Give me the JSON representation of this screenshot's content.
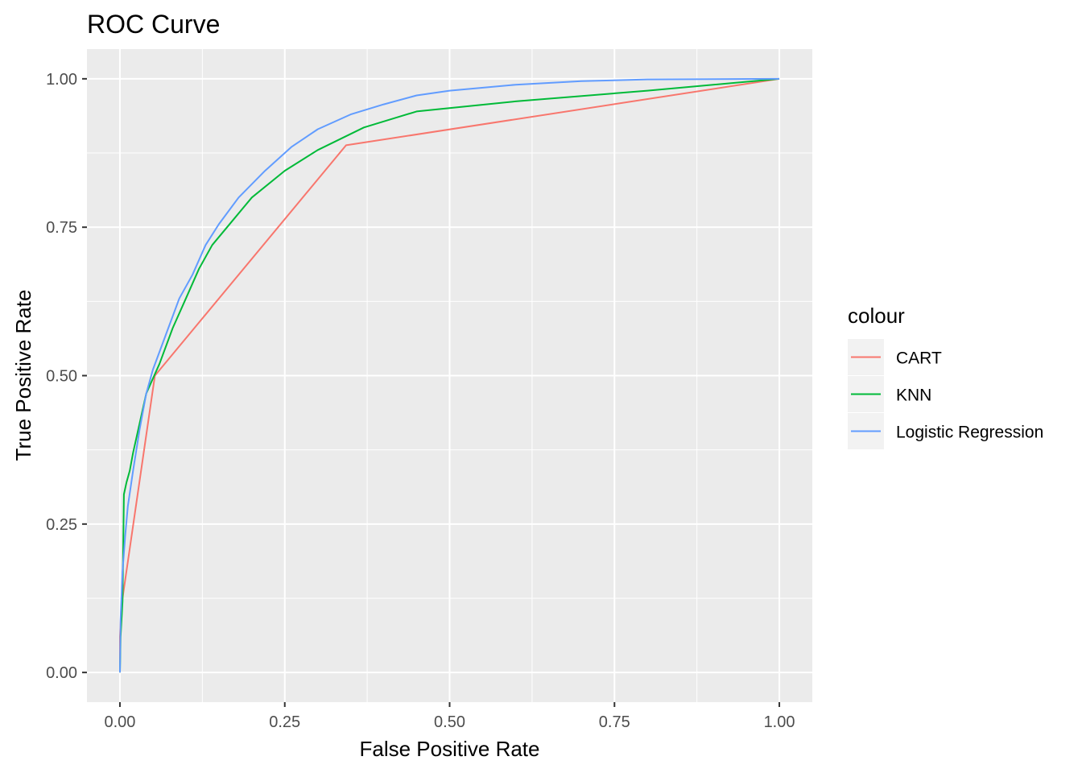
{
  "chart_data": {
    "type": "line",
    "title": "ROC Curve",
    "xlabel": "False Positive Rate",
    "ylabel": "True Positive Rate",
    "xlim": [
      -0.05,
      1.05
    ],
    "ylim": [
      -0.05,
      1.05
    ],
    "x_ticks": [
      0.0,
      0.25,
      0.5,
      0.75,
      1.0
    ],
    "x_tick_labels": [
      "0.00",
      "0.25",
      "0.50",
      "0.75",
      "1.00"
    ],
    "y_ticks": [
      0.0,
      0.25,
      0.5,
      0.75,
      1.0
    ],
    "y_tick_labels": [
      "0.00",
      "0.25",
      "0.50",
      "0.75",
      "1.00"
    ],
    "grid": true,
    "legend": {
      "title": "colour",
      "position": "right"
    },
    "series": [
      {
        "name": "CART",
        "color": "#F8766D",
        "points": [
          [
            0,
            0
          ],
          [
            0.0,
            0.06
          ],
          [
            0.002,
            0.11
          ],
          [
            0.053,
            0.5
          ],
          [
            0.343,
            0.888
          ],
          [
            1.0,
            1.0
          ]
        ]
      },
      {
        "name": "KNN",
        "color": "#00BA38",
        "points": [
          [
            0,
            0
          ],
          [
            0.001,
            0.06
          ],
          [
            0.004,
            0.12
          ],
          [
            0.006,
            0.3
          ],
          [
            0.01,
            0.32
          ],
          [
            0.015,
            0.34
          ],
          [
            0.02,
            0.37
          ],
          [
            0.03,
            0.42
          ],
          [
            0.04,
            0.47
          ],
          [
            0.06,
            0.52
          ],
          [
            0.08,
            0.58
          ],
          [
            0.1,
            0.63
          ],
          [
            0.12,
            0.68
          ],
          [
            0.14,
            0.72
          ],
          [
            0.17,
            0.76
          ],
          [
            0.2,
            0.8
          ],
          [
            0.25,
            0.845
          ],
          [
            0.3,
            0.88
          ],
          [
            0.37,
            0.918
          ],
          [
            0.42,
            0.935
          ],
          [
            0.45,
            0.945
          ],
          [
            0.6,
            0.962
          ],
          [
            0.8,
            0.98
          ],
          [
            1.0,
            1.0
          ]
        ]
      },
      {
        "name": "Logistic Regression",
        "color": "#619CFF",
        "points": [
          [
            0,
            0
          ],
          [
            0.001,
            0.09
          ],
          [
            0.004,
            0.17
          ],
          [
            0.008,
            0.23
          ],
          [
            0.012,
            0.28
          ],
          [
            0.02,
            0.34
          ],
          [
            0.03,
            0.41
          ],
          [
            0.04,
            0.47
          ],
          [
            0.05,
            0.51
          ],
          [
            0.07,
            0.57
          ],
          [
            0.09,
            0.63
          ],
          [
            0.11,
            0.67
          ],
          [
            0.13,
            0.72
          ],
          [
            0.15,
            0.755
          ],
          [
            0.18,
            0.8
          ],
          [
            0.22,
            0.845
          ],
          [
            0.26,
            0.885
          ],
          [
            0.3,
            0.915
          ],
          [
            0.35,
            0.94
          ],
          [
            0.4,
            0.957
          ],
          [
            0.45,
            0.972
          ],
          [
            0.5,
            0.98
          ],
          [
            0.6,
            0.99
          ],
          [
            0.7,
            0.996
          ],
          [
            0.8,
            0.999
          ],
          [
            1.0,
            1.0
          ]
        ]
      }
    ]
  }
}
